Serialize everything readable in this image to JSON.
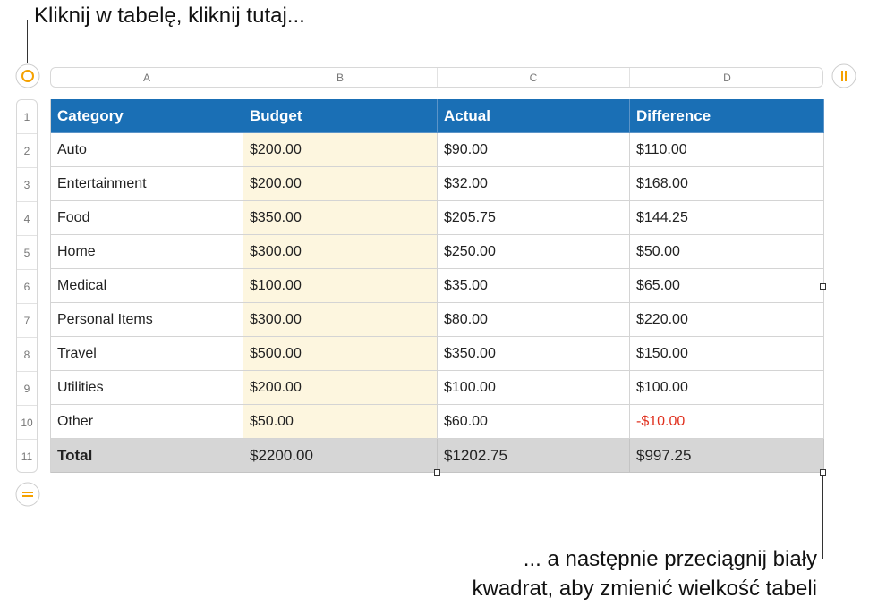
{
  "callouts": {
    "top": "Kliknij w tabelę, kliknij tutaj...",
    "bottom": [
      "... a następnie przeciągnij biały",
      "kwadrat, aby zmienić wielkość tabeli"
    ]
  },
  "columns": [
    "A",
    "B",
    "C",
    "D"
  ],
  "row_numbers": [
    "1",
    "2",
    "3",
    "4",
    "5",
    "6",
    "7",
    "8",
    "9",
    "10",
    "11"
  ],
  "table": {
    "rows": [
      [
        "Category",
        "Budget",
        "Actual",
        "Difference"
      ],
      [
        "Auto",
        "$200.00",
        "$90.00",
        "$110.00"
      ],
      [
        "Entertainment",
        "$200.00",
        "$32.00",
        "$168.00"
      ],
      [
        "Food",
        "$350.00",
        "$205.75",
        "$144.25"
      ],
      [
        "Home",
        "$300.00",
        "$250.00",
        "$50.00"
      ],
      [
        "Medical",
        "$100.00",
        "$35.00",
        "$65.00"
      ],
      [
        "Personal Items",
        "$300.00",
        "$80.00",
        "$220.00"
      ],
      [
        "Travel",
        "$500.00",
        "$350.00",
        "$150.00"
      ],
      [
        "Utilities",
        "$200.00",
        "$100.00",
        "$100.00"
      ],
      [
        "Other",
        "$50.00",
        "$60.00",
        "-$10.00"
      ],
      [
        "Total",
        "$2200.00",
        "$1202.75",
        "$997.25"
      ]
    ]
  }
}
